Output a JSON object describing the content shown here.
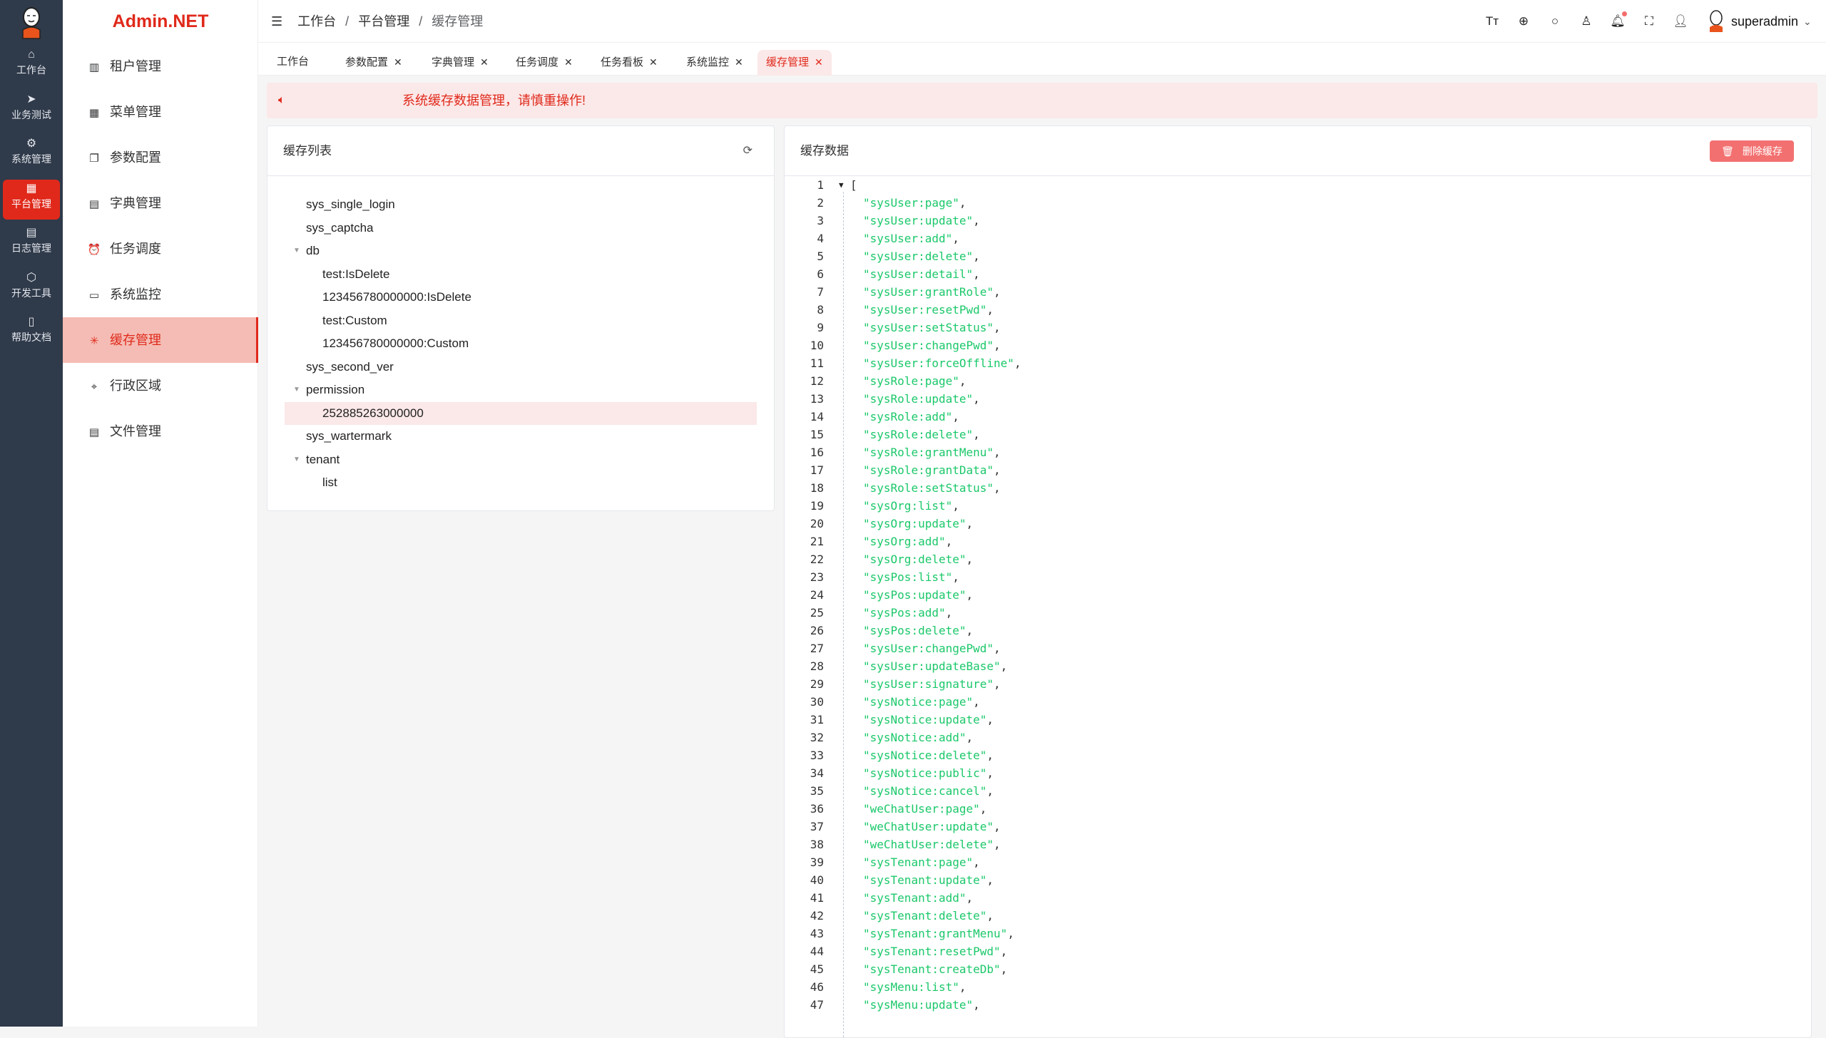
{
  "rail": {
    "items": [
      {
        "label": "工作台",
        "icon": "home-icon",
        "glyph": "⌂"
      },
      {
        "label": "业务测试",
        "icon": "send-icon",
        "glyph": "➤"
      },
      {
        "label": "系统管理",
        "icon": "gear-icon",
        "glyph": "⚙"
      },
      {
        "label": "平台管理",
        "icon": "grid-icon",
        "glyph": "▦",
        "active": true
      },
      {
        "label": "日志管理",
        "icon": "document-icon",
        "glyph": "▤"
      },
      {
        "label": "开发工具",
        "icon": "chip-icon",
        "glyph": "⬡"
      },
      {
        "label": "帮助文档",
        "icon": "book-icon",
        "glyph": "▯"
      }
    ]
  },
  "brand": "Admin.NET",
  "submenu": {
    "items": [
      {
        "label": "租户管理",
        "icon": "building-icon",
        "glyph": "▥"
      },
      {
        "label": "菜单管理",
        "icon": "grid-icon",
        "glyph": "▦"
      },
      {
        "label": "参数配置",
        "icon": "copy-icon",
        "glyph": "❐"
      },
      {
        "label": "字典管理",
        "icon": "book-icon",
        "glyph": "▤"
      },
      {
        "label": "任务调度",
        "icon": "alarm-clock-icon",
        "glyph": "⏰"
      },
      {
        "label": "系统监控",
        "icon": "monitor-icon",
        "glyph": "▭"
      },
      {
        "label": "缓存管理",
        "icon": "loading-icon",
        "glyph": "✳",
        "active": true
      },
      {
        "label": "行政区域",
        "icon": "location-icon",
        "glyph": "⌖"
      },
      {
        "label": "文件管理",
        "icon": "file-icon",
        "glyph": "▤"
      }
    ]
  },
  "breadcrumb": [
    "工作台",
    "平台管理",
    "缓存管理"
  ],
  "breadcrumb_sep": "/",
  "header": {
    "icons": [
      {
        "name": "font-size-icon",
        "glyph": "Tт"
      },
      {
        "name": "language-icon",
        "glyph": "⊕"
      },
      {
        "name": "search-icon",
        "glyph": "○"
      },
      {
        "name": "theme-shirt-icon",
        "glyph": "♙"
      },
      {
        "name": "bell-icon",
        "glyph": "🔔︎",
        "badge": true
      },
      {
        "name": "fullscreen-icon",
        "glyph": "⛶"
      },
      {
        "name": "user-icon",
        "glyph": "👤︎"
      }
    ],
    "username": "superadmin"
  },
  "tabs": [
    {
      "label": "工作台",
      "closable": false
    },
    {
      "label": "参数配置",
      "closable": true
    },
    {
      "label": "字典管理",
      "closable": true
    },
    {
      "label": "任务调度",
      "closable": true
    },
    {
      "label": "任务看板",
      "closable": true
    },
    {
      "label": "系统监控",
      "closable": true
    },
    {
      "label": "缓存管理",
      "closable": true,
      "active": true
    }
  ],
  "tab_close": "✕",
  "alert": "系统缓存数据管理，请慎重操作!",
  "cache_list": {
    "title": "缓存列表",
    "tree": [
      {
        "label": "sys_single_login",
        "level": 0
      },
      {
        "label": "sys_captcha",
        "level": 0
      },
      {
        "label": "db",
        "level": 0,
        "expanded": true
      },
      {
        "label": "test:IsDelete",
        "level": 1
      },
      {
        "label": "123456780000000:IsDelete",
        "level": 1
      },
      {
        "label": "test:Custom",
        "level": 1
      },
      {
        "label": "123456780000000:Custom",
        "level": 1
      },
      {
        "label": "sys_second_ver",
        "level": 0
      },
      {
        "label": "permission",
        "level": 0,
        "expanded": true
      },
      {
        "label": "252885263000000",
        "level": 1,
        "selected": true
      },
      {
        "label": "sys_wartermark",
        "level": 0
      },
      {
        "label": "tenant",
        "level": 0,
        "expanded": true
      },
      {
        "label": "list",
        "level": 1
      }
    ]
  },
  "cache_data": {
    "title": "缓存数据",
    "delete_label": "删除缓存",
    "open_bracket": "[",
    "values": [
      "sysUser:page",
      "sysUser:update",
      "sysUser:add",
      "sysUser:delete",
      "sysUser:detail",
      "sysUser:grantRole",
      "sysUser:resetPwd",
      "sysUser:setStatus",
      "sysUser:changePwd",
      "sysUser:forceOffline",
      "sysRole:page",
      "sysRole:update",
      "sysRole:add",
      "sysRole:delete",
      "sysRole:grantMenu",
      "sysRole:grantData",
      "sysRole:setStatus",
      "sysOrg:list",
      "sysOrg:update",
      "sysOrg:add",
      "sysOrg:delete",
      "sysPos:list",
      "sysPos:update",
      "sysPos:add",
      "sysPos:delete",
      "sysUser:changePwd",
      "sysUser:updateBase",
      "sysUser:signature",
      "sysNotice:page",
      "sysNotice:update",
      "sysNotice:add",
      "sysNotice:delete",
      "sysNotice:public",
      "sysNotice:cancel",
      "weChatUser:page",
      "weChatUser:update",
      "weChatUser:delete",
      "sysTenant:page",
      "sysTenant:update",
      "sysTenant:add",
      "sysTenant:delete",
      "sysTenant:grantMenu",
      "sysTenant:resetPwd",
      "sysTenant:createDb",
      "sysMenu:list",
      "sysMenu:update"
    ]
  },
  "colors": {
    "accent": "#e0291b",
    "rail_bg": "#2f3a4a",
    "string": "#1bc86a",
    "alert_bg": "#fbe8e8"
  }
}
